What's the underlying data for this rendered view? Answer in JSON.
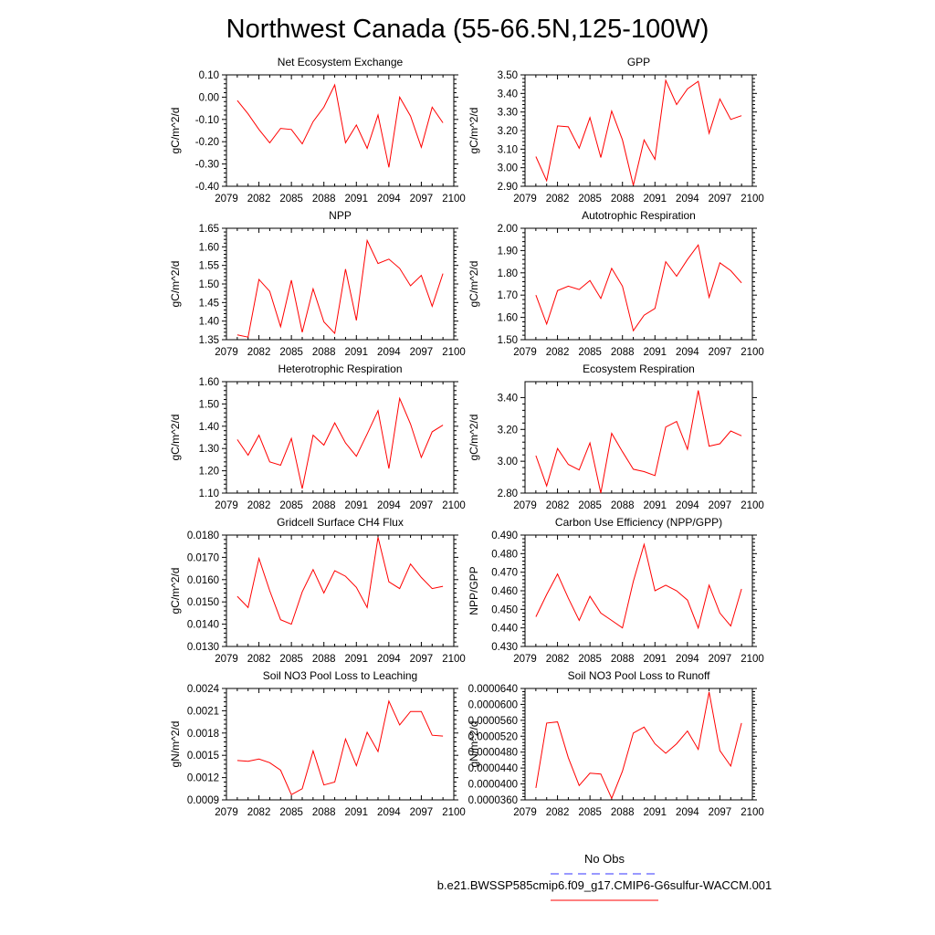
{
  "title": "Northwest Canada (55-66.5N,125-100W)",
  "colors": {
    "series": "#ff0000",
    "obs": "#3333ff",
    "axis": "#000000"
  },
  "legend": {
    "obs_label": "No Obs",
    "model_label": "b.e21.BWSSP585cmip6.f09_g17.CMIP6-G6sulfur-WACCM.001"
  },
  "chart_data": [
    {
      "type": "line",
      "title": "Net Ecosystem Exchange",
      "ylabel": "gC/m^2/d",
      "xlim": [
        2079,
        2100
      ],
      "ylim": [
        -0.4,
        0.1
      ],
      "yticks": [
        -0.4,
        -0.3,
        -0.2,
        -0.1,
        0.0,
        0.1
      ],
      "ytick_labels": [
        "-0.40",
        "-0.30",
        "-0.20",
        "-0.10",
        "0.00",
        "0.10"
      ],
      "xticks": [
        2079,
        2082,
        2085,
        2088,
        2091,
        2094,
        2097,
        2100
      ],
      "xtick_labels": [
        "2079",
        "2082",
        "2085",
        "2088",
        "2091",
        "2094",
        "2097",
        "2100"
      ],
      "x": [
        2080,
        2081,
        2082,
        2083,
        2084,
        2085,
        2086,
        2087,
        2088,
        2089,
        2090,
        2091,
        2092,
        2093,
        2094,
        2095,
        2096,
        2097,
        2098,
        2099
      ],
      "values": [
        -0.015,
        -0.075,
        -0.145,
        -0.205,
        -0.14,
        -0.145,
        -0.21,
        -0.11,
        -0.045,
        0.055,
        -0.205,
        -0.125,
        -0.23,
        -0.08,
        -0.315,
        0.0,
        -0.085,
        -0.225,
        -0.045,
        -0.115
      ]
    },
    {
      "type": "line",
      "title": "GPP",
      "ylabel": "gC/m^2/d",
      "xlim": [
        2079,
        2100
      ],
      "ylim": [
        2.9,
        3.5
      ],
      "yticks": [
        2.9,
        3.0,
        3.1,
        3.2,
        3.3,
        3.4,
        3.5
      ],
      "ytick_labels": [
        "2.90",
        "3.00",
        "3.10",
        "3.20",
        "3.30",
        "3.40",
        "3.50"
      ],
      "xticks": [
        2079,
        2082,
        2085,
        2088,
        2091,
        2094,
        2097,
        2100
      ],
      "xtick_labels": [
        "2079",
        "2082",
        "2085",
        "2088",
        "2091",
        "2094",
        "2097",
        "2100"
      ],
      "x": [
        2080,
        2081,
        2082,
        2083,
        2084,
        2085,
        2086,
        2087,
        2088,
        2089,
        2090,
        2091,
        2092,
        2093,
        2094,
        2095,
        2096,
        2097,
        2098,
        2099
      ],
      "values": [
        3.06,
        2.93,
        3.225,
        3.22,
        3.105,
        3.27,
        3.055,
        3.305,
        3.15,
        2.905,
        3.15,
        3.045,
        3.47,
        3.34,
        3.425,
        3.465,
        3.185,
        3.37,
        3.26,
        3.28
      ]
    },
    {
      "type": "line",
      "title": "NPP",
      "ylabel": "gC/m^2/d",
      "xlim": [
        2079,
        2100
      ],
      "ylim": [
        1.35,
        1.65
      ],
      "yticks": [
        1.35,
        1.4,
        1.45,
        1.5,
        1.55,
        1.6,
        1.65
      ],
      "ytick_labels": [
        "1.35",
        "1.40",
        "1.45",
        "1.50",
        "1.55",
        "1.60",
        "1.65"
      ],
      "xticks": [
        2079,
        2082,
        2085,
        2088,
        2091,
        2094,
        2097,
        2100
      ],
      "xtick_labels": [
        "2079",
        "2082",
        "2085",
        "2088",
        "2091",
        "2094",
        "2097",
        "2100"
      ],
      "x": [
        2080,
        2081,
        2082,
        2083,
        2084,
        2085,
        2086,
        2087,
        2088,
        2089,
        2090,
        2091,
        2092,
        2093,
        2094,
        2095,
        2096,
        2097,
        2098,
        2099
      ],
      "values": [
        1.363,
        1.357,
        1.512,
        1.48,
        1.385,
        1.51,
        1.37,
        1.487,
        1.398,
        1.367,
        1.54,
        1.402,
        1.617,
        1.555,
        1.567,
        1.542,
        1.495,
        1.523,
        1.44,
        1.528
      ]
    },
    {
      "type": "line",
      "title": "Autotrophic Respiration",
      "ylabel": "gC/m^2/d",
      "xlim": [
        2079,
        2100
      ],
      "ylim": [
        1.5,
        2.0
      ],
      "yticks": [
        1.5,
        1.6,
        1.7,
        1.8,
        1.9,
        2.0
      ],
      "ytick_labels": [
        "1.50",
        "1.60",
        "1.70",
        "1.80",
        "1.90",
        "2.00"
      ],
      "xticks": [
        2079,
        2082,
        2085,
        2088,
        2091,
        2094,
        2097,
        2100
      ],
      "xtick_labels": [
        "2079",
        "2082",
        "2085",
        "2088",
        "2091",
        "2094",
        "2097",
        "2100"
      ],
      "x": [
        2080,
        2081,
        2082,
        2083,
        2084,
        2085,
        2086,
        2087,
        2088,
        2089,
        2090,
        2091,
        2092,
        2093,
        2094,
        2095,
        2096,
        2097,
        2098,
        2099
      ],
      "values": [
        1.7,
        1.57,
        1.72,
        1.74,
        1.725,
        1.765,
        1.685,
        1.82,
        1.74,
        1.54,
        1.61,
        1.64,
        1.85,
        1.785,
        1.86,
        1.925,
        1.69,
        1.845,
        1.81,
        1.755
      ]
    },
    {
      "type": "line",
      "title": "Heterotrophic Respiration",
      "ylabel": "gC/m^2/d",
      "xlim": [
        2079,
        2100
      ],
      "ylim": [
        1.1,
        1.6
      ],
      "yticks": [
        1.1,
        1.2,
        1.3,
        1.4,
        1.5,
        1.6
      ],
      "ytick_labels": [
        "1.10",
        "1.20",
        "1.30",
        "1.40",
        "1.50",
        "1.60"
      ],
      "xticks": [
        2079,
        2082,
        2085,
        2088,
        2091,
        2094,
        2097,
        2100
      ],
      "xtick_labels": [
        "2079",
        "2082",
        "2085",
        "2088",
        "2091",
        "2094",
        "2097",
        "2100"
      ],
      "x": [
        2080,
        2081,
        2082,
        2083,
        2084,
        2085,
        2086,
        2087,
        2088,
        2089,
        2090,
        2091,
        2092,
        2093,
        2094,
        2095,
        2096,
        2097,
        2098,
        2099
      ],
      "values": [
        1.34,
        1.27,
        1.36,
        1.24,
        1.225,
        1.345,
        1.12,
        1.36,
        1.315,
        1.415,
        1.325,
        1.265,
        1.365,
        1.47,
        1.21,
        1.525,
        1.41,
        1.26,
        1.375,
        1.405
      ]
    },
    {
      "type": "line",
      "title": "Ecosystem Respiration",
      "ylabel": "gC/m^2/d",
      "xlim": [
        2079,
        2100
      ],
      "ylim": [
        2.8,
        3.5
      ],
      "yticks": [
        2.8,
        3.0,
        3.2,
        3.4
      ],
      "ytick_labels": [
        "2.80",
        "3.00",
        "3.20",
        "3.40"
      ],
      "xticks": [
        2079,
        2082,
        2085,
        2088,
        2091,
        2094,
        2097,
        2100
      ],
      "xtick_labels": [
        "2079",
        "2082",
        "2085",
        "2088",
        "2091",
        "2094",
        "2097",
        "2100"
      ],
      "x": [
        2080,
        2081,
        2082,
        2083,
        2084,
        2085,
        2086,
        2087,
        2088,
        2089,
        2090,
        2091,
        2092,
        2093,
        2094,
        2095,
        2096,
        2097,
        2098,
        2099
      ],
      "values": [
        3.035,
        2.845,
        3.08,
        2.98,
        2.945,
        3.115,
        2.8,
        3.175,
        3.06,
        2.95,
        2.935,
        2.91,
        3.215,
        3.25,
        3.075,
        3.445,
        3.095,
        3.11,
        3.19,
        3.16
      ]
    },
    {
      "type": "line",
      "title": "Gridcell Surface CH4 Flux",
      "ylabel": "gC/m^2/d",
      "xlim": [
        2079,
        2100
      ],
      "ylim": [
        0.013,
        0.018
      ],
      "yticks": [
        0.013,
        0.014,
        0.015,
        0.016,
        0.017,
        0.018
      ],
      "ytick_labels": [
        "0.0130",
        "0.0140",
        "0.0150",
        "0.0160",
        "0.0170",
        "0.0180"
      ],
      "xticks": [
        2079,
        2082,
        2085,
        2088,
        2091,
        2094,
        2097,
        2100
      ],
      "xtick_labels": [
        "2079",
        "2082",
        "2085",
        "2088",
        "2091",
        "2094",
        "2097",
        "2100"
      ],
      "x": [
        2080,
        2081,
        2082,
        2083,
        2084,
        2085,
        2086,
        2087,
        2088,
        2089,
        2090,
        2091,
        2092,
        2093,
        2094,
        2095,
        2096,
        2097,
        2098,
        2099
      ],
      "values": [
        0.01525,
        0.01475,
        0.01695,
        0.0155,
        0.0142,
        0.014,
        0.01545,
        0.01645,
        0.0154,
        0.0164,
        0.01615,
        0.01565,
        0.01475,
        0.0179,
        0.0159,
        0.0156,
        0.0167,
        0.0161,
        0.0156,
        0.0157
      ]
    },
    {
      "type": "line",
      "title": "Carbon Use Efficiency (NPP/GPP)",
      "ylabel": "NPP/GPP",
      "xlim": [
        2079,
        2100
      ],
      "ylim": [
        0.43,
        0.49
      ],
      "yticks": [
        0.43,
        0.44,
        0.45,
        0.46,
        0.47,
        0.48,
        0.49
      ],
      "ytick_labels": [
        "0.430",
        "0.440",
        "0.450",
        "0.460",
        "0.470",
        "0.480",
        "0.490"
      ],
      "xticks": [
        2079,
        2082,
        2085,
        2088,
        2091,
        2094,
        2097,
        2100
      ],
      "xtick_labels": [
        "2079",
        "2082",
        "2085",
        "2088",
        "2091",
        "2094",
        "2097",
        "2100"
      ],
      "x": [
        2080,
        2081,
        2082,
        2083,
        2084,
        2085,
        2086,
        2087,
        2088,
        2089,
        2090,
        2091,
        2092,
        2093,
        2094,
        2095,
        2096,
        2097,
        2098,
        2099
      ],
      "values": [
        0.446,
        0.458,
        0.469,
        0.456,
        0.444,
        0.457,
        0.448,
        0.444,
        0.44,
        0.465,
        0.485,
        0.46,
        0.463,
        0.46,
        0.455,
        0.44,
        0.463,
        0.448,
        0.441,
        0.461
      ]
    },
    {
      "type": "line",
      "title": "Soil NO3 Pool Loss to Leaching",
      "ylabel": "gN/m^2/d",
      "xlim": [
        2079,
        2100
      ],
      "ylim": [
        0.0009,
        0.0024
      ],
      "yticks": [
        0.0009,
        0.0012,
        0.0015,
        0.0018,
        0.0021,
        0.0024
      ],
      "ytick_labels": [
        "0.0009",
        "0.0012",
        "0.0015",
        "0.0018",
        "0.0021",
        "0.0024"
      ],
      "xticks": [
        2079,
        2082,
        2085,
        2088,
        2091,
        2094,
        2097,
        2100
      ],
      "xtick_labels": [
        "2079",
        "2082",
        "2085",
        "2088",
        "2091",
        "2094",
        "2097",
        "2100"
      ],
      "x": [
        2080,
        2081,
        2082,
        2083,
        2084,
        2085,
        2086,
        2087,
        2088,
        2089,
        2090,
        2091,
        2092,
        2093,
        2094,
        2095,
        2096,
        2097,
        2098,
        2099
      ],
      "values": [
        0.00143,
        0.00142,
        0.00145,
        0.0014,
        0.0013,
        0.00097,
        0.00105,
        0.00156,
        0.0011,
        0.00114,
        0.00172,
        0.00136,
        0.00181,
        0.00155,
        0.00223,
        0.00191,
        0.00209,
        0.00209,
        0.00177,
        0.00176
      ]
    },
    {
      "type": "line",
      "title": "Soil NO3 Pool Loss to Runoff",
      "ylabel": "gN/m^2/d",
      "xlim": [
        2079,
        2100
      ],
      "ylim": [
        3.6e-05,
        6.4e-05
      ],
      "yticks": [
        3.6e-05,
        4e-05,
        4.4e-05,
        4.8e-05,
        5.2e-05,
        5.6e-05,
        6e-05,
        6.4e-05
      ],
      "ytick_labels": [
        "0.0000360",
        "0.0000400",
        "0.0000440",
        "0.0000480",
        "0.0000520",
        "0.0000560",
        "0.0000600",
        "0.0000640"
      ],
      "xticks": [
        2079,
        2082,
        2085,
        2088,
        2091,
        2094,
        2097,
        2100
      ],
      "xtick_labels": [
        "2079",
        "2082",
        "2085",
        "2088",
        "2091",
        "2094",
        "2097",
        "2100"
      ],
      "x": [
        2080,
        2081,
        2082,
        2083,
        2084,
        2085,
        2086,
        2087,
        2088,
        2089,
        2090,
        2091,
        2092,
        2093,
        2094,
        2095,
        2096,
        2097,
        2098,
        2099
      ],
      "values": [
        3.9e-05,
        5.53e-05,
        5.56e-05,
        4.66e-05,
        3.96e-05,
        4.27e-05,
        4.25e-05,
        3.64e-05,
        4.32e-05,
        5.28e-05,
        5.43e-05,
        5.01e-05,
        4.77e-05,
        5.01e-05,
        5.33e-05,
        4.87e-05,
        6.31e-05,
        4.84e-05,
        4.45e-05,
        5.53e-05
      ]
    }
  ]
}
